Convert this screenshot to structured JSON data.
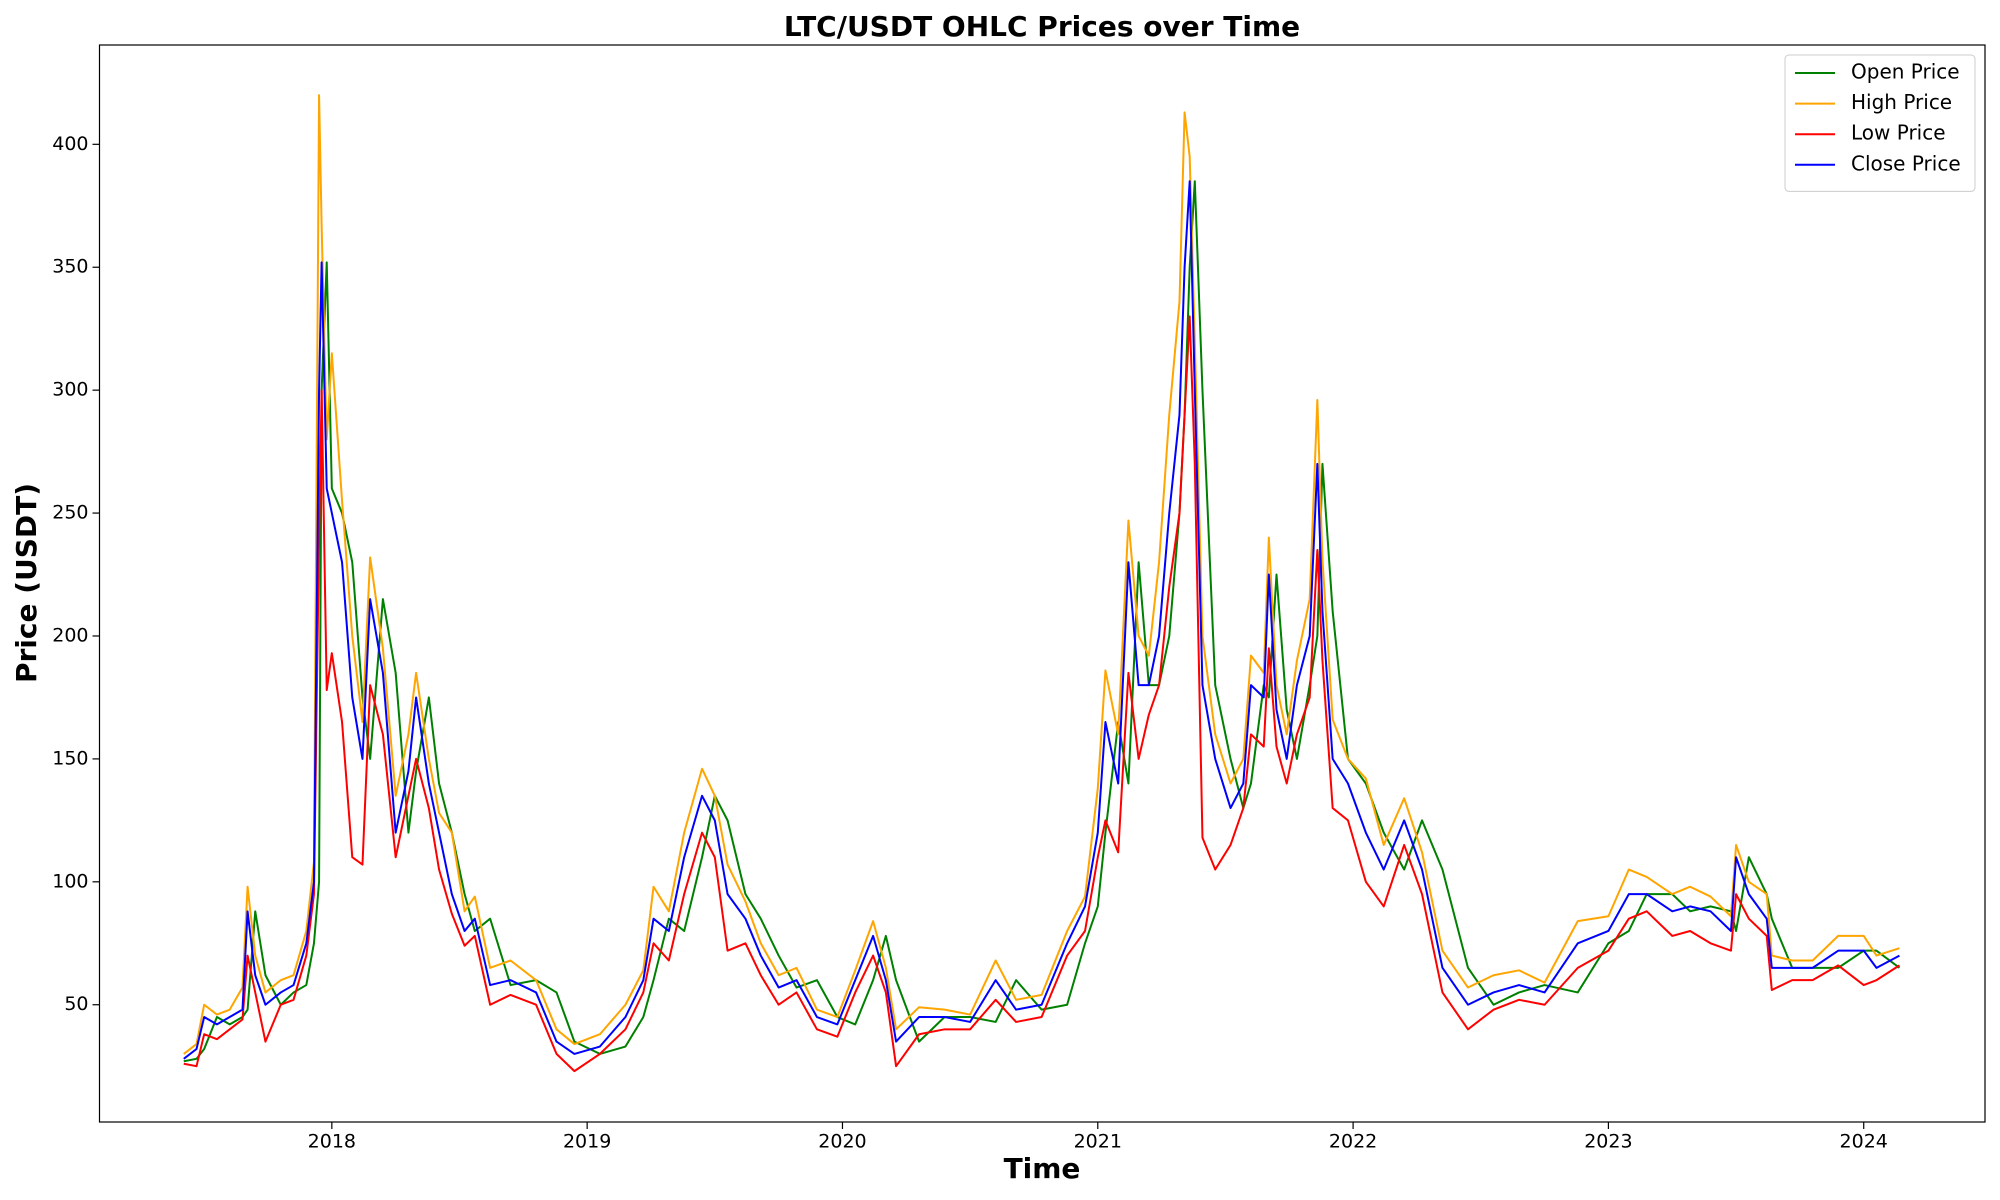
{
  "chart_data": {
    "type": "line",
    "title": "LTC/USDT OHLC Prices over Time",
    "xlabel": "Time",
    "ylabel": "Price (USDT)",
    "x": [
      2017.42,
      2017.47,
      2017.5,
      2017.55,
      2017.6,
      2017.65,
      2017.67,
      2017.7,
      2017.74,
      2017.8,
      2017.85,
      2017.9,
      2017.93,
      2017.95,
      2017.96,
      2017.98,
      2018.0,
      2018.04,
      2018.08,
      2018.12,
      2018.15,
      2018.2,
      2018.25,
      2018.3,
      2018.33,
      2018.38,
      2018.42,
      2018.47,
      2018.52,
      2018.56,
      2018.62,
      2018.7,
      2018.8,
      2018.88,
      2018.95,
      2019.05,
      2019.15,
      2019.22,
      2019.26,
      2019.32,
      2019.38,
      2019.45,
      2019.5,
      2019.55,
      2019.62,
      2019.68,
      2019.75,
      2019.82,
      2019.9,
      2019.98,
      2020.05,
      2020.12,
      2020.17,
      2020.21,
      2020.3,
      2020.4,
      2020.5,
      2020.6,
      2020.68,
      2020.78,
      2020.88,
      2020.95,
      2021.0,
      2021.03,
      2021.08,
      2021.12,
      2021.16,
      2021.2,
      2021.24,
      2021.28,
      2021.32,
      2021.34,
      2021.36,
      2021.38,
      2021.41,
      2021.46,
      2021.52,
      2021.57,
      2021.6,
      2021.65,
      2021.67,
      2021.7,
      2021.74,
      2021.78,
      2021.83,
      2021.86,
      2021.88,
      2021.92,
      2021.98,
      2022.05,
      2022.12,
      2022.2,
      2022.27,
      2022.35,
      2022.45,
      2022.55,
      2022.65,
      2022.75,
      2022.88,
      2023.0,
      2023.08,
      2023.15,
      2023.25,
      2023.32,
      2023.4,
      2023.48,
      2023.5,
      2023.55,
      2023.62,
      2023.64,
      2023.72,
      2023.8,
      2023.9,
      2024.0,
      2024.05,
      2024.14
    ],
    "series": [
      {
        "name": "Open Price",
        "color": "green",
        "values": [
          27,
          28,
          32,
          45,
          42,
          45,
          48,
          88,
          62,
          50,
          55,
          58,
          75,
          100,
          300,
          352,
          260,
          250,
          230,
          175,
          150,
          215,
          185,
          120,
          145,
          175,
          140,
          120,
          95,
          80,
          85,
          58,
          60,
          55,
          35,
          30,
          33,
          45,
          60,
          85,
          80,
          110,
          135,
          125,
          95,
          85,
          70,
          57,
          60,
          45,
          42,
          60,
          78,
          60,
          35,
          45,
          45,
          43,
          60,
          48,
          50,
          75,
          90,
          120,
          165,
          140,
          230,
          180,
          180,
          200,
          250,
          290,
          350,
          385,
          300,
          180,
          150,
          130,
          140,
          180,
          175,
          225,
          170,
          150,
          180,
          200,
          270,
          210,
          150,
          140,
          120,
          105,
          125,
          105,
          65,
          50,
          55,
          58,
          55,
          75,
          80,
          95,
          95,
          88,
          90,
          88,
          80,
          110,
          95,
          85,
          65,
          65,
          65,
          72,
          72,
          65
        ]
      },
      {
        "name": "High Price",
        "color": "orange",
        "values": [
          30,
          34,
          50,
          46,
          48,
          57,
          98,
          70,
          55,
          60,
          62,
          80,
          108,
          420,
          367,
          280,
          315,
          255,
          200,
          165,
          232,
          195,
          135,
          160,
          185,
          150,
          128,
          120,
          88,
          94,
          65,
          68,
          60,
          40,
          34,
          38,
          50,
          64,
          98,
          88,
          120,
          146,
          135,
          107,
          92,
          75,
          62,
          65,
          48,
          45,
          64,
          84,
          65,
          40,
          49,
          48,
          46,
          68,
          52,
          54,
          80,
          94,
          138,
          186,
          160,
          247,
          200,
          192,
          230,
          290,
          336,
          413,
          395,
          320,
          200,
          160,
          140,
          150,
          192,
          185,
          240,
          180,
          160,
          190,
          215,
          296,
          231,
          166,
          150,
          142,
          115,
          134,
          112,
          72,
          57,
          62,
          64,
          59,
          84,
          86,
          105,
          102,
          95,
          98,
          94,
          86,
          115,
          100,
          95,
          70,
          68,
          68,
          78,
          78,
          70,
          73
        ]
      },
      {
        "name": "Low Price",
        "color": "red",
        "values": [
          26,
          25,
          38,
          36,
          40,
          44,
          70,
          55,
          35,
          50,
          52,
          70,
          95,
          240,
          300,
          178,
          193,
          165,
          110,
          107,
          180,
          160,
          110,
          135,
          150,
          130,
          105,
          87,
          74,
          78,
          50,
          54,
          50,
          30,
          23,
          30,
          40,
          55,
          75,
          68,
          95,
          120,
          110,
          72,
          75,
          62,
          50,
          55,
          40,
          37,
          55,
          70,
          55,
          25,
          38,
          40,
          40,
          52,
          43,
          45,
          70,
          80,
          110,
          125,
          112,
          185,
          150,
          168,
          180,
          220,
          250,
          290,
          330,
          270,
          118,
          105,
          115,
          130,
          160,
          155,
          195,
          155,
          140,
          160,
          175,
          235,
          190,
          130,
          125,
          100,
          90,
          115,
          95,
          55,
          40,
          48,
          52,
          50,
          65,
          72,
          85,
          88,
          78,
          80,
          75,
          72,
          95,
          85,
          78,
          56,
          60,
          60,
          66,
          58,
          60,
          66
        ]
      },
      {
        "name": "Close Price",
        "color": "blue",
        "values": [
          28,
          32,
          45,
          42,
          45,
          48,
          88,
          62,
          50,
          55,
          58,
          75,
          100,
          300,
          352,
          260,
          250,
          230,
          175,
          150,
          215,
          185,
          120,
          145,
          175,
          140,
          120,
          95,
          80,
          85,
          58,
          60,
          55,
          35,
          30,
          33,
          45,
          60,
          85,
          80,
          110,
          135,
          125,
          95,
          85,
          70,
          57,
          60,
          45,
          42,
          60,
          78,
          60,
          35,
          45,
          45,
          43,
          60,
          48,
          50,
          75,
          90,
          120,
          165,
          140,
          230,
          180,
          180,
          200,
          250,
          290,
          350,
          385,
          300,
          180,
          150,
          130,
          140,
          180,
          175,
          225,
          170,
          150,
          180,
          200,
          270,
          210,
          150,
          140,
          120,
          105,
          125,
          105,
          65,
          50,
          55,
          58,
          55,
          75,
          80,
          95,
          95,
          88,
          90,
          88,
          80,
          110,
          95,
          85,
          65,
          65,
          65,
          72,
          72,
          65,
          70
        ]
      }
    ],
    "xlim": [
      2017.09,
      2024.475
    ],
    "xticks": [
      2018,
      2019,
      2020,
      2021,
      2022,
      2023,
      2024
    ],
    "ylim": [
      2.3,
      440.4
    ],
    "yticks": [
      50,
      100,
      150,
      200,
      250,
      300,
      350,
      400
    ],
    "grid": false,
    "legend": "upper right"
  }
}
